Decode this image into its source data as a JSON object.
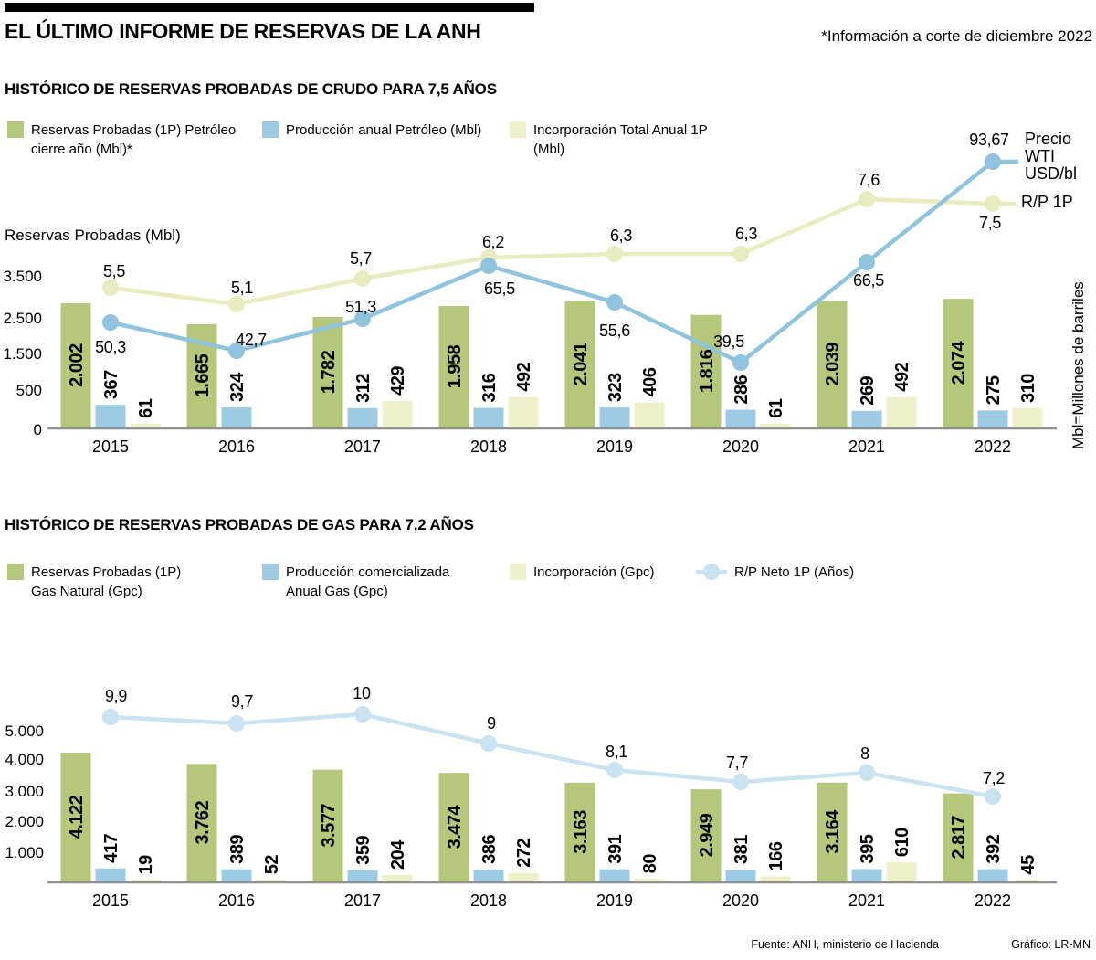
{
  "header": {
    "title": "EL ÚLTIMO INFORME DE RESERVAS DE LA ANH",
    "note": "*Información a corte de diciembre 2022"
  },
  "footer": {
    "source": "Fuente: ANH, ministerio de Hacienda",
    "credit": "Gráfico: LR-MN"
  },
  "colors": {
    "bar_green": "#b4c77a",
    "bar_blue": "#9ccbe3",
    "bar_cream": "#eef0ca",
    "line_blue": "#8fc3de",
    "line_cream": "#e9ecbe",
    "line_lightblue": "#c9e3f1",
    "axis": "#909090",
    "text": "#000000"
  },
  "chart_data": [
    {
      "type": "bar+line",
      "title": "HISTÓRICO DE RESERVAS PROBADAS DE CRUDO PARA 7,5 AÑOS",
      "ylabel": "Reservas Probadas (Mbl)",
      "right_label": "Mbl=Millones de barriles",
      "yticks": [
        "0",
        "500",
        "1.500",
        "2.500",
        "3.500"
      ],
      "categories": [
        "2015",
        "2016",
        "2017",
        "2018",
        "2019",
        "2020",
        "2021",
        "2022"
      ],
      "legend": [
        {
          "swatch": "bar_green",
          "lines": [
            "Reservas Probadas (1P) Petróleo",
            "cierre año (Mbl)*"
          ]
        },
        {
          "swatch": "bar_blue",
          "lines": [
            "Producción anual Petróleo (Mbl)"
          ]
        },
        {
          "swatch": "bar_cream",
          "lines": [
            "Incorporación Total Anual 1P",
            "(Mbl)"
          ]
        }
      ],
      "series": [
        {
          "name": "Reservas Probadas (1P) Petróleo cierre año (Mbl)*",
          "type": "bar",
          "color_key": "bar_green",
          "values": [
            2002,
            1665,
            1782,
            1958,
            2041,
            1816,
            2039,
            2074
          ],
          "labels": [
            "2.002",
            "1.665",
            "1.782",
            "1.958",
            "2.041",
            "1.816",
            "2.039",
            "2.074"
          ]
        },
        {
          "name": "Producción anual Petróleo (Mbl)",
          "type": "bar",
          "color_key": "bar_blue",
          "values": [
            367,
            324,
            312,
            316,
            323,
            286,
            269,
            275
          ],
          "labels": [
            "367",
            "324",
            "312",
            "316",
            "323",
            "286",
            "269",
            "275"
          ]
        },
        {
          "name": "Incorporación Total Anual 1P (Mbl)",
          "type": "bar",
          "color_key": "bar_cream",
          "values": [
            61,
            null,
            429,
            492,
            406,
            61,
            492,
            310
          ],
          "labels": [
            "61",
            null,
            "429",
            "492",
            "406",
            "61",
            "492",
            "310"
          ]
        },
        {
          "name": "Precio WTI USD/bl",
          "type": "line",
          "color_key": "line_blue",
          "values": [
            50.3,
            42.7,
            51.3,
            65.5,
            55.6,
            39.5,
            66.5,
            93.67
          ],
          "labels": [
            "50,3",
            "42,7",
            "51,3",
            "65,5",
            "55,6",
            "39,5",
            "66,5",
            "93,67"
          ],
          "end_label_lines": [
            "Precio WTI",
            "USD/bl"
          ]
        },
        {
          "name": "R/P 1P",
          "type": "line",
          "color_key": "line_cream",
          "values": [
            5.5,
            5.1,
            5.7,
            6.2,
            6.3,
            6.3,
            7.6,
            7.5
          ],
          "labels": [
            "5,5",
            "5,1",
            "5,7",
            "6,2",
            "6,3",
            "6,3",
            "7,6",
            "7,5"
          ],
          "end_label_lines": [
            "R/P 1P"
          ]
        }
      ]
    },
    {
      "type": "bar+line",
      "title": "HISTÓRICO DE RESERVAS PROBADAS DE GAS PARA 7,2 AÑOS",
      "yticks": [
        "1.000",
        "2.000",
        "3.000",
        "4.000",
        "5.000"
      ],
      "categories": [
        "2015",
        "2016",
        "2017",
        "2018",
        "2019",
        "2020",
        "2021",
        "2022"
      ],
      "legend": [
        {
          "swatch": "bar_green",
          "lines": [
            "Reservas Probadas (1P)",
            "Gas Natural (Gpc)"
          ]
        },
        {
          "swatch": "bar_blue",
          "lines": [
            "Producción comercializada",
            "Anual Gas (Gpc)"
          ]
        },
        {
          "swatch": "bar_cream",
          "lines": [
            "Incorporación (Gpc)"
          ]
        },
        {
          "marker": "line_lightblue",
          "lines": [
            "R/P Neto 1P (Años)"
          ]
        }
      ],
      "series": [
        {
          "name": "Reservas Probadas (1P) Gas Natural (Gpc)",
          "type": "bar",
          "color_key": "bar_green",
          "values": [
            4122,
            3762,
            3577,
            3474,
            3163,
            2949,
            3164,
            2817
          ],
          "labels": [
            "4.122",
            "3.762",
            "3.577",
            "3.474",
            "3.163",
            "2.949",
            "3.164",
            "2.817"
          ]
        },
        {
          "name": "Producción comercializada Anual Gas (Gpc)",
          "type": "bar",
          "color_key": "bar_blue",
          "values": [
            417,
            389,
            359,
            386,
            391,
            381,
            395,
            392
          ],
          "labels": [
            "417",
            "389",
            "359",
            "386",
            "391",
            "381",
            "395",
            "392"
          ]
        },
        {
          "name": "Incorporación (Gpc)",
          "type": "bar",
          "color_key": "bar_cream",
          "values": [
            19,
            52,
            204,
            272,
            80,
            166,
            610,
            45
          ],
          "labels": [
            "19",
            "52",
            "204",
            "272",
            "80",
            "166",
            "610",
            "45"
          ]
        },
        {
          "name": "R/P Neto 1P (Años)",
          "type": "line",
          "color_key": "line_lightblue",
          "values": [
            9.9,
            9.7,
            10,
            9,
            8.1,
            7.7,
            8,
            7.2
          ],
          "labels": [
            "9,9",
            "9,7",
            "10",
            "9",
            "8,1",
            "7,7",
            "8",
            "7,2"
          ]
        }
      ]
    }
  ]
}
